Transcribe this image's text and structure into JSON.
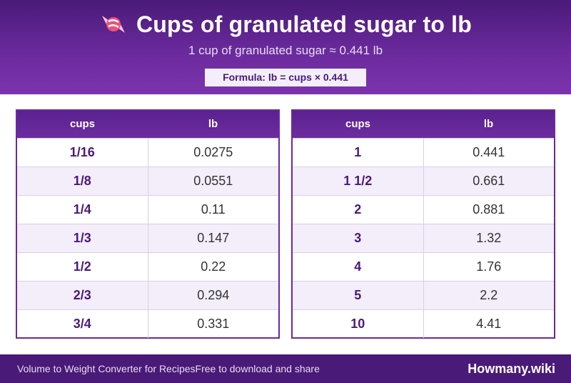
{
  "header": {
    "icon": "candy-icon",
    "title": "Cups of granulated sugar to lb",
    "subtitle": "1 cup of granulated sugar ≈ 0.441 lb",
    "formula": "Formula: lb = cups × 0.441"
  },
  "tables": [
    {
      "headers": [
        "cups",
        "lb"
      ],
      "rows": [
        [
          "1/16",
          "0.0275"
        ],
        [
          "1/8",
          "0.0551"
        ],
        [
          "1/4",
          "0.11"
        ],
        [
          "1/3",
          "0.147"
        ],
        [
          "1/2",
          "0.22"
        ],
        [
          "2/3",
          "0.294"
        ],
        [
          "3/4",
          "0.331"
        ]
      ]
    },
    {
      "headers": [
        "cups",
        "lb"
      ],
      "rows": [
        [
          "1",
          "0.441"
        ],
        [
          "1 1/2",
          "0.661"
        ],
        [
          "2",
          "0.881"
        ],
        [
          "3",
          "1.32"
        ],
        [
          "4",
          "1.76"
        ],
        [
          "5",
          "2.2"
        ],
        [
          "10",
          "4.41"
        ]
      ]
    }
  ],
  "footer": {
    "tagline": "Volume to Weight Converter for Recipes",
    "share": "Free to download and share",
    "brand": "Howmany.wiki"
  },
  "colors": {
    "primary": "#4a1a78",
    "accent": "#6a2a9c",
    "row_alt": "#f3eefa"
  }
}
